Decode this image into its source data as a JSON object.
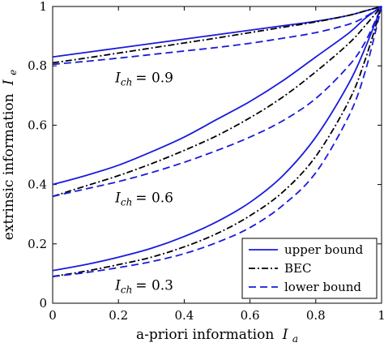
{
  "chart_data": {
    "type": "line",
    "xlabel": "a-priori information",
    "xlabel_symbol": "I",
    "xlabel_sub": "a",
    "ylabel": "extrinsic information",
    "ylabel_symbol": "I",
    "ylabel_sub": "e",
    "xlim": [
      0,
      1
    ],
    "ylim": [
      0,
      1
    ],
    "xticks": [
      0,
      0.2,
      0.4,
      0.6,
      0.8,
      1
    ],
    "xtick_labels": [
      "0",
      "0.2",
      "0.4",
      "0.6",
      "0.8",
      "1"
    ],
    "yticks": [
      0,
      0.2,
      0.4,
      0.6,
      0.8,
      1
    ],
    "ytick_labels": [
      "0",
      "0.2",
      "0.4",
      "0.6",
      "0.8",
      "1"
    ],
    "grid": false,
    "legend_placement": "bottom-right",
    "x": [
      0,
      0.1,
      0.2,
      0.3,
      0.4,
      0.5,
      0.6,
      0.7,
      0.8,
      0.9,
      0.95,
      1
    ],
    "series": [
      {
        "name": "upper bound",
        "style": "solid",
        "color": "#1a1adb",
        "group": "0.9",
        "values": [
          0.83,
          0.845,
          0.86,
          0.875,
          0.89,
          0.905,
          0.92,
          0.935,
          0.95,
          0.97,
          0.985,
          1
        ]
      },
      {
        "name": "BEC",
        "style": "dashdot",
        "color": "#000000",
        "group": "0.9",
        "values": [
          0.81,
          0.826,
          0.843,
          0.86,
          0.877,
          0.894,
          0.912,
          0.93,
          0.948,
          0.97,
          0.985,
          1
        ]
      },
      {
        "name": "lower bound",
        "style": "dashed",
        "color": "#1a1adb",
        "group": "0.9",
        "values": [
          0.805,
          0.815,
          0.826,
          0.838,
          0.85,
          0.862,
          0.876,
          0.893,
          0.912,
          0.94,
          0.965,
          1
        ]
      },
      {
        "name": "upper bound",
        "style": "solid",
        "color": "#1a1adb",
        "group": "0.6",
        "values": [
          0.4,
          0.43,
          0.465,
          0.51,
          0.56,
          0.62,
          0.68,
          0.75,
          0.83,
          0.91,
          0.96,
          1
        ]
      },
      {
        "name": "BEC",
        "style": "dashdot",
        "color": "#000000",
        "group": "0.6",
        "values": [
          0.36,
          0.395,
          0.43,
          0.47,
          0.515,
          0.565,
          0.625,
          0.695,
          0.78,
          0.875,
          0.935,
          1
        ]
      },
      {
        "name": "lower bound",
        "style": "dashed",
        "color": "#1a1adb",
        "group": "0.6",
        "values": [
          0.36,
          0.385,
          0.41,
          0.44,
          0.475,
          0.515,
          0.56,
          0.615,
          0.69,
          0.8,
          0.88,
          1
        ]
      },
      {
        "name": "upper bound",
        "style": "solid",
        "color": "#1a1adb",
        "group": "0.3",
        "values": [
          0.11,
          0.13,
          0.155,
          0.185,
          0.225,
          0.275,
          0.34,
          0.43,
          0.56,
          0.74,
          0.86,
          1
        ]
      },
      {
        "name": "BEC",
        "style": "dashdot",
        "color": "#000000",
        "group": "0.3",
        "values": [
          0.09,
          0.108,
          0.13,
          0.155,
          0.19,
          0.235,
          0.295,
          0.375,
          0.495,
          0.68,
          0.82,
          1
        ]
      },
      {
        "name": "lower bound",
        "style": "dashed",
        "color": "#1a1adb",
        "group": "0.3",
        "values": [
          0.09,
          0.103,
          0.12,
          0.14,
          0.167,
          0.205,
          0.255,
          0.33,
          0.44,
          0.63,
          0.78,
          1
        ]
      }
    ],
    "legend": [
      {
        "label": "upper bound",
        "style": "solid",
        "color": "#1a1adb"
      },
      {
        "label": "BEC",
        "style": "dashdot",
        "color": "#000000"
      },
      {
        "label": "lower bound",
        "style": "dashed",
        "color": "#1a1adb"
      }
    ],
    "annotations": [
      {
        "symbol": "I",
        "sub": "ch",
        "value_text": "= 0.9",
        "at": [
          0.19,
          0.745
        ]
      },
      {
        "symbol": "I",
        "sub": "ch",
        "value_text": "= 0.6",
        "at": [
          0.19,
          0.34
        ]
      },
      {
        "symbol": "I",
        "sub": "ch",
        "value_text": "= 0.3",
        "at": [
          0.19,
          0.045
        ]
      }
    ]
  }
}
